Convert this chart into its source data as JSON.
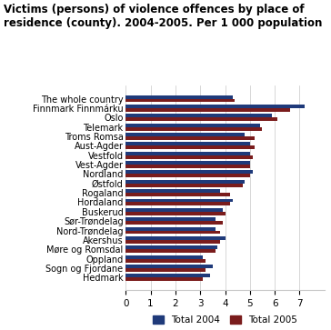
{
  "title": "Victims (persons) of violence offences by place of\nresidence (county). 2004-2005. Per 1 000 population",
  "categories": [
    "The whole country",
    "Finnmark Finnmárku",
    "Oslo",
    "Telemark",
    "Troms Romsa",
    "Aust-Agder",
    "Vestfold",
    "Vest-Agder",
    "Nordland",
    "Østfold",
    "Rogaland",
    "Hordaland",
    "Buskerud",
    "Sør-Trøndelag",
    "Nord-Trøndelag",
    "Akershus",
    "Møre og Romsdal",
    "Oppland",
    "Sogn og Fjordane",
    "Hedmark"
  ],
  "values_2004": [
    4.3,
    7.2,
    5.9,
    5.4,
    4.8,
    5.0,
    5.0,
    5.0,
    5.1,
    4.8,
    3.8,
    4.3,
    3.9,
    3.6,
    3.6,
    4.0,
    3.7,
    3.1,
    3.5,
    3.4
  ],
  "values_2005": [
    4.4,
    6.6,
    6.1,
    5.5,
    5.2,
    5.2,
    5.1,
    5.0,
    5.0,
    4.7,
    4.2,
    4.2,
    4.0,
    3.9,
    3.8,
    3.8,
    3.6,
    3.2,
    3.2,
    3.1
  ],
  "color_2004": "#1f3a7a",
  "color_2005": "#7a1c1c",
  "xlim": [
    0,
    8
  ],
  "xticks": [
    0,
    1,
    2,
    3,
    4,
    5,
    6,
    7
  ],
  "legend_label_2004": "Total 2004",
  "legend_label_2005": "Total 2005",
  "title_fontsize": 8.5,
  "label_fontsize": 7.0,
  "tick_fontsize": 7.5,
  "bar_height": 0.38,
  "background_color": "#ffffff",
  "grid_color": "#c8c8c8"
}
